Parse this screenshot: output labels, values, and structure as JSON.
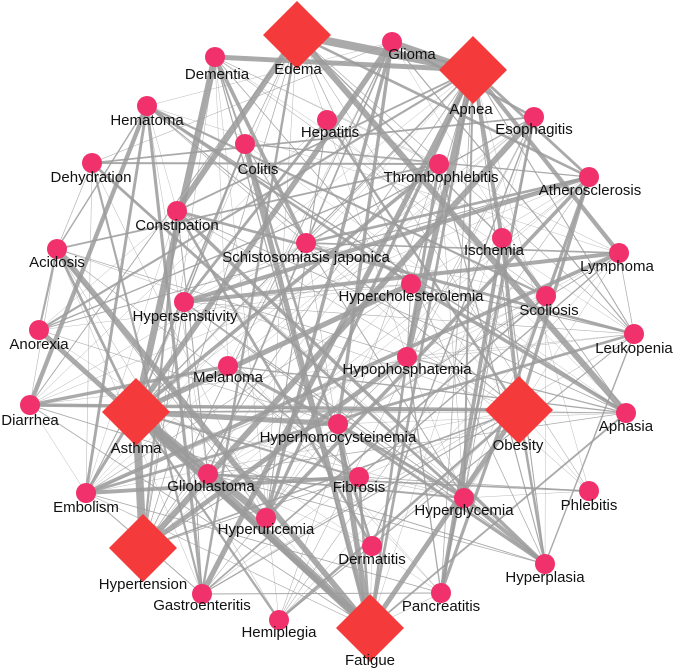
{
  "nodes": [
    {
      "label": "Edema",
      "shape": "diamond"
    },
    {
      "label": "Apnea",
      "shape": "diamond"
    },
    {
      "label": "Asthma",
      "shape": "diamond"
    },
    {
      "label": "Obesity",
      "shape": "diamond"
    },
    {
      "label": "Hypertension",
      "shape": "diamond"
    },
    {
      "label": "Fatigue",
      "shape": "diamond"
    },
    {
      "label": "Glioma",
      "shape": "circle"
    },
    {
      "label": "Dementia",
      "shape": "circle"
    },
    {
      "label": "Hematoma",
      "shape": "circle"
    },
    {
      "label": "Hepatitis",
      "shape": "circle"
    },
    {
      "label": "Esophagitis",
      "shape": "circle"
    },
    {
      "label": "Colitis",
      "shape": "circle"
    },
    {
      "label": "Thrombophlebitis",
      "shape": "circle"
    },
    {
      "label": "Dehydration",
      "shape": "circle"
    },
    {
      "label": "Atherosclerosis",
      "shape": "circle"
    },
    {
      "label": "Constipation",
      "shape": "circle"
    },
    {
      "label": "Schistosomiasis japonica",
      "shape": "circle"
    },
    {
      "label": "Ischemia",
      "shape": "circle"
    },
    {
      "label": "Acidosis",
      "shape": "circle"
    },
    {
      "label": "Lymphoma",
      "shape": "circle"
    },
    {
      "label": "Hypercholesterolemia",
      "shape": "circle"
    },
    {
      "label": "Hypersensitivity",
      "shape": "circle"
    },
    {
      "label": "Scoliosis",
      "shape": "circle"
    },
    {
      "label": "Anorexia",
      "shape": "circle"
    },
    {
      "label": "Leukopenia",
      "shape": "circle"
    },
    {
      "label": "Melanoma",
      "shape": "circle"
    },
    {
      "label": "Hypophosphatemia",
      "shape": "circle"
    },
    {
      "label": "Diarrhea",
      "shape": "circle"
    },
    {
      "label": "Aphasia",
      "shape": "circle"
    },
    {
      "label": "Hyperhomocysteinemia",
      "shape": "circle"
    },
    {
      "label": "Glioblastoma",
      "shape": "circle"
    },
    {
      "label": "Fibrosis",
      "shape": "circle"
    },
    {
      "label": "Phlebitis",
      "shape": "circle"
    },
    {
      "label": "Embolism",
      "shape": "circle"
    },
    {
      "label": "Hyperglycemia",
      "shape": "circle"
    },
    {
      "label": "Hyperuricemia",
      "shape": "circle"
    },
    {
      "label": "Dermatitis",
      "shape": "circle"
    },
    {
      "label": "Hyperplasia",
      "shape": "circle"
    },
    {
      "label": "Gastroenteritis",
      "shape": "circle"
    },
    {
      "label": "Pancreatitis",
      "shape": "circle"
    },
    {
      "label": "Hemiplegia",
      "shape": "circle"
    }
  ]
}
